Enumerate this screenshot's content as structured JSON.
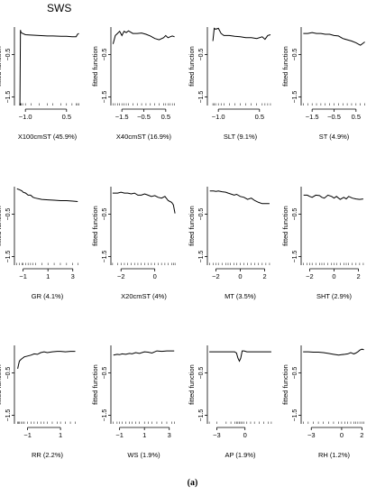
{
  "figure": {
    "title": "SWS",
    "caption": "(a)",
    "ylabel": "fitted function"
  },
  "chart_data": [
    {
      "type": "line",
      "xlabel": "X100cmST  (45.9%)",
      "ylabel": "fitted function",
      "xlim": [
        -1.4,
        1.0
      ],
      "ylim": [
        -1.7,
        0.15
      ],
      "xticks": [
        {
          "v": -1.0,
          "l": "−1.0"
        },
        {
          "v": 0.5,
          "l": "0.5"
        }
      ],
      "yticks": [
        {
          "v": -0.5,
          "l": "−0.5"
        },
        {
          "v": -1.5,
          "l": "−1.5"
        }
      ],
      "x": [
        -1.2,
        -1.18,
        -1.16,
        -1.1,
        -1.0,
        -0.8,
        -0.5,
        -0.2,
        0.0,
        0.3,
        0.5,
        0.7,
        0.85,
        0.9,
        0.95
      ],
      "y": [
        -1.7,
        0.08,
        0.02,
        0.0,
        -0.03,
        -0.04,
        -0.05,
        -0.06,
        -0.06,
        -0.07,
        -0.07,
        -0.08,
        -0.08,
        -0.02,
        0.0
      ]
    },
    {
      "type": "line",
      "xlabel": "X40cmST  (16.9%)",
      "ylabel": "fitted function",
      "xlim": [
        -2.0,
        1.0
      ],
      "ylim": [
        -1.7,
        0.15
      ],
      "xticks": [
        {
          "v": -1.5,
          "l": "−1.5"
        },
        {
          "v": -0.5,
          "l": "−0.5"
        },
        {
          "v": 0.5,
          "l": "0.5"
        }
      ],
      "yticks": [
        {
          "v": -0.5,
          "l": "−0.5"
        },
        {
          "v": -1.5,
          "l": "−1.5"
        }
      ],
      "x": [
        -1.9,
        -1.8,
        -1.7,
        -1.6,
        -1.5,
        -1.4,
        -1.3,
        -1.2,
        -1.0,
        -0.8,
        -0.6,
        -0.4,
        -0.2,
        0.0,
        0.2,
        0.4,
        0.5,
        0.6,
        0.7,
        0.8,
        0.9
      ],
      "y": [
        -0.25,
        -0.05,
        0.0,
        0.05,
        -0.05,
        0.05,
        0.02,
        0.06,
        0.0,
        0.0,
        0.01,
        -0.02,
        -0.06,
        -0.12,
        -0.15,
        -0.1,
        -0.05,
        -0.1,
        -0.08,
        -0.06,
        -0.08
      ]
    },
    {
      "type": "line",
      "xlabel": "SLT  (9.1%)",
      "ylabel": "fitted function",
      "xlim": [
        -1.4,
        1.0
      ],
      "ylim": [
        -1.7,
        0.15
      ],
      "xticks": [
        {
          "v": -1.0,
          "l": "−1.0"
        },
        {
          "v": 0.5,
          "l": "0.5"
        }
      ],
      "yticks": [
        {
          "v": -0.5,
          "l": "−0.5"
        },
        {
          "v": -1.5,
          "l": "−1.5"
        }
      ],
      "x": [
        -1.2,
        -1.15,
        -1.1,
        -1.0,
        -0.9,
        -0.8,
        -0.6,
        -0.4,
        -0.2,
        0.0,
        0.2,
        0.4,
        0.6,
        0.7,
        0.8,
        0.9
      ],
      "y": [
        -0.18,
        0.12,
        0.1,
        0.12,
        0.0,
        -0.05,
        -0.05,
        -0.07,
        -0.08,
        -0.1,
        -0.1,
        -0.12,
        -0.08,
        -0.14,
        -0.05,
        -0.03
      ]
    },
    {
      "type": "line",
      "xlabel": "ST  (4.9%)",
      "ylabel": "fitted function",
      "xlim": [
        -2.0,
        1.0
      ],
      "ylim": [
        -1.7,
        0.15
      ],
      "xticks": [
        {
          "v": -1.5,
          "l": "−1.5"
        },
        {
          "v": -0.5,
          "l": "−0.5"
        },
        {
          "v": 0.5,
          "l": "0.5"
        }
      ],
      "yticks": [
        {
          "v": -0.5,
          "l": "−0.5"
        },
        {
          "v": -1.5,
          "l": "−1.5"
        }
      ],
      "x": [
        -1.9,
        -1.7,
        -1.5,
        -1.3,
        -1.1,
        -0.9,
        -0.7,
        -0.5,
        -0.3,
        -0.1,
        0.1,
        0.3,
        0.5,
        0.7,
        0.9
      ],
      "y": [
        0.0,
        0.0,
        0.02,
        0.0,
        0.0,
        -0.02,
        -0.02,
        -0.05,
        -0.06,
        -0.12,
        -0.15,
        -0.18,
        -0.22,
        -0.28,
        -0.2
      ]
    },
    {
      "type": "line",
      "xlabel": "GR  (4.1%)",
      "ylabel": "fitted function",
      "xlim": [
        -1.7,
        3.6
      ],
      "ylim": [
        -1.7,
        0.15
      ],
      "xticks": [
        {
          "v": -1,
          "l": "−1"
        },
        {
          "v": 1,
          "l": "1"
        },
        {
          "v": 3,
          "l": "3"
        }
      ],
      "yticks": [
        {
          "v": -0.5,
          "l": "−0.5"
        },
        {
          "v": -1.5,
          "l": "−1.5"
        }
      ],
      "x": [
        -1.5,
        -1.3,
        -1.1,
        -1.0,
        -0.8,
        -0.6,
        -0.4,
        -0.2,
        0.0,
        0.5,
        1.0,
        1.5,
        2.0,
        2.5,
        3.0,
        3.4
      ],
      "y": [
        0.1,
        0.08,
        0.05,
        0.02,
        0.0,
        -0.05,
        -0.05,
        -0.1,
        -0.12,
        -0.15,
        -0.16,
        -0.17,
        -0.18,
        -0.18,
        -0.19,
        -0.2
      ]
    },
    {
      "type": "line",
      "xlabel": "X20cmST  (4%)",
      "ylabel": "fitted function",
      "xlim": [
        -2.6,
        1.3
      ],
      "ylim": [
        -1.7,
        0.15
      ],
      "xticks": [
        {
          "v": -2,
          "l": "−2"
        },
        {
          "v": 0,
          "l": "0"
        }
      ],
      "yticks": [
        {
          "v": -0.5,
          "l": "−0.5"
        },
        {
          "v": -1.5,
          "l": "−1.5"
        }
      ],
      "x": [
        -2.5,
        -2.2,
        -2.0,
        -1.8,
        -1.6,
        -1.4,
        -1.2,
        -1.0,
        -0.8,
        -0.6,
        -0.4,
        -0.2,
        0.0,
        0.2,
        0.4,
        0.6,
        0.8,
        1.0,
        1.1,
        1.2
      ],
      "y": [
        0.0,
        0.0,
        0.02,
        0.0,
        0.0,
        -0.02,
        0.0,
        -0.05,
        -0.05,
        -0.02,
        -0.05,
        -0.08,
        -0.06,
        -0.1,
        -0.12,
        -0.08,
        -0.18,
        -0.22,
        -0.28,
        -0.48
      ]
    },
    {
      "type": "line",
      "xlabel": "MT  (3.5%)",
      "ylabel": "fitted function",
      "xlim": [
        -2.7,
        2.7
      ],
      "ylim": [
        -1.7,
        0.15
      ],
      "xticks": [
        {
          "v": -2,
          "l": "−2"
        },
        {
          "v": 0,
          "l": "0"
        },
        {
          "v": 2,
          "l": "2"
        }
      ],
      "yticks": [
        {
          "v": -0.5,
          "l": "−0.5"
        },
        {
          "v": -1.5,
          "l": "−1.5"
        }
      ],
      "x": [
        -2.5,
        -2.2,
        -2.0,
        -1.8,
        -1.5,
        -1.2,
        -1.0,
        -0.8,
        -0.5,
        -0.3,
        0.0,
        0.3,
        0.6,
        0.9,
        1.2,
        1.5,
        1.8,
        2.1,
        2.4
      ],
      "y": [
        0.05,
        0.05,
        0.04,
        0.05,
        0.03,
        0.02,
        0.0,
        -0.02,
        -0.05,
        -0.03,
        -0.08,
        -0.1,
        -0.15,
        -0.12,
        -0.18,
        -0.22,
        -0.25,
        -0.25,
        -0.25
      ]
    },
    {
      "type": "line",
      "xlabel": "SHT  (2.9%)",
      "ylabel": "fitted function",
      "xlim": [
        -2.7,
        2.7
      ],
      "ylim": [
        -1.7,
        0.15
      ],
      "xticks": [
        {
          "v": -2,
          "l": "−2"
        },
        {
          "v": 0,
          "l": "0"
        },
        {
          "v": 2,
          "l": "2"
        }
      ],
      "yticks": [
        {
          "v": -0.5,
          "l": "−0.5"
        },
        {
          "v": -1.5,
          "l": "−1.5"
        }
      ],
      "x": [
        -2.5,
        -2.2,
        -2.0,
        -1.8,
        -1.5,
        -1.2,
        -1.0,
        -0.8,
        -0.5,
        -0.2,
        0.0,
        0.2,
        0.5,
        0.8,
        1.0,
        1.2,
        1.5,
        1.8,
        2.1,
        2.4
      ],
      "y": [
        -0.05,
        -0.05,
        -0.08,
        -0.1,
        -0.05,
        -0.06,
        -0.1,
        -0.12,
        -0.05,
        -0.08,
        -0.12,
        -0.08,
        -0.15,
        -0.1,
        -0.14,
        -0.08,
        -0.12,
        -0.14,
        -0.15,
        -0.14
      ]
    },
    {
      "type": "line",
      "xlabel": "RR  (2.2%)",
      "ylabel": "fitted function",
      "xlim": [
        -1.8,
        2.2
      ],
      "ylim": [
        -1.7,
        0.15
      ],
      "xticks": [
        {
          "v": -1,
          "l": "−1"
        },
        {
          "v": 1,
          "l": "1"
        }
      ],
      "yticks": [
        {
          "v": -0.5,
          "l": "−0.5"
        },
        {
          "v": -1.5,
          "l": "−1.5"
        }
      ],
      "x": [
        -1.6,
        -1.55,
        -1.5,
        -1.4,
        -1.3,
        -1.2,
        -1.0,
        -0.8,
        -0.6,
        -0.4,
        -0.2,
        0.0,
        0.2,
        0.5,
        0.8,
        1.0,
        1.3,
        1.6,
        1.9
      ],
      "y": [
        -0.4,
        -0.3,
        -0.22,
        -0.18,
        -0.15,
        -0.12,
        -0.1,
        -0.08,
        -0.05,
        -0.06,
        -0.02,
        0.0,
        -0.02,
        0.0,
        0.01,
        0.01,
        0.0,
        0.01,
        0.01
      ]
    },
    {
      "type": "line",
      "xlabel": "WS  (1.9%)",
      "ylabel": "fitted function",
      "xlim": [
        -1.7,
        3.6
      ],
      "ylim": [
        -1.7,
        0.15
      ],
      "xticks": [
        {
          "v": -1,
          "l": "−1"
        },
        {
          "v": 1,
          "l": "1"
        },
        {
          "v": 3,
          "l": "3"
        }
      ],
      "yticks": [
        {
          "v": -0.5,
          "l": "−0.5"
        },
        {
          "v": -1.5,
          "l": "−1.5"
        }
      ],
      "x": [
        -1.5,
        -1.2,
        -1.0,
        -0.8,
        -0.5,
        -0.2,
        0.0,
        0.3,
        0.6,
        1.0,
        1.3,
        1.6,
        2.0,
        2.4,
        2.8,
        3.2,
        3.4
      ],
      "y": [
        -0.08,
        -0.06,
        -0.07,
        -0.05,
        -0.06,
        -0.04,
        -0.05,
        -0.02,
        -0.04,
        0.0,
        -0.01,
        -0.03,
        0.02,
        0.01,
        0.02,
        0.02,
        0.02
      ]
    },
    {
      "type": "line",
      "xlabel": "AP  (1.9%)",
      "ylabel": "fitted function",
      "xlim": [
        -4.0,
        3.0
      ],
      "ylim": [
        -1.7,
        0.15
      ],
      "xticks": [
        {
          "v": -3,
          "l": "−3"
        },
        {
          "v": 0,
          "l": "0"
        }
      ],
      "yticks": [
        {
          "v": -0.5,
          "l": "−0.5"
        },
        {
          "v": -1.5,
          "l": "−1.5"
        }
      ],
      "x": [
        -3.8,
        -3.0,
        -2.0,
        -1.5,
        -1.1,
        -0.9,
        -0.75,
        -0.6,
        -0.45,
        -0.3,
        -0.1,
        0.2,
        0.6,
        1.0,
        1.5,
        2.0,
        2.5,
        2.8
      ],
      "y": [
        0.0,
        0.0,
        0.0,
        0.0,
        0.0,
        -0.03,
        -0.15,
        -0.22,
        -0.15,
        0.02,
        0.02,
        0.0,
        0.0,
        0.0,
        0.0,
        0.0,
        0.0,
        0.0
      ]
    },
    {
      "type": "line",
      "xlabel": "RH  (1.2%)",
      "ylabel": "fitted function",
      "xlim": [
        -4.0,
        2.5
      ],
      "ylim": [
        -1.7,
        0.15
      ],
      "xticks": [
        {
          "v": -3,
          "l": "−3"
        },
        {
          "v": 0,
          "l": "0"
        },
        {
          "v": 2,
          "l": "2"
        }
      ],
      "yticks": [
        {
          "v": -0.5,
          "l": "−0.5"
        },
        {
          "v": -1.5,
          "l": "−1.5"
        }
      ],
      "x": [
        -3.8,
        -3.3,
        -2.8,
        -2.3,
        -1.8,
        -1.3,
        -0.8,
        -0.3,
        0.0,
        0.3,
        0.6,
        0.9,
        1.2,
        1.4,
        1.6,
        1.8,
        2.0,
        2.2
      ],
      "y": [
        0.0,
        0.0,
        -0.01,
        -0.01,
        -0.02,
        -0.04,
        -0.06,
        -0.08,
        -0.07,
        -0.06,
        -0.05,
        -0.02,
        -0.05,
        -0.03,
        0.0,
        0.04,
        0.06,
        0.05
      ]
    }
  ]
}
